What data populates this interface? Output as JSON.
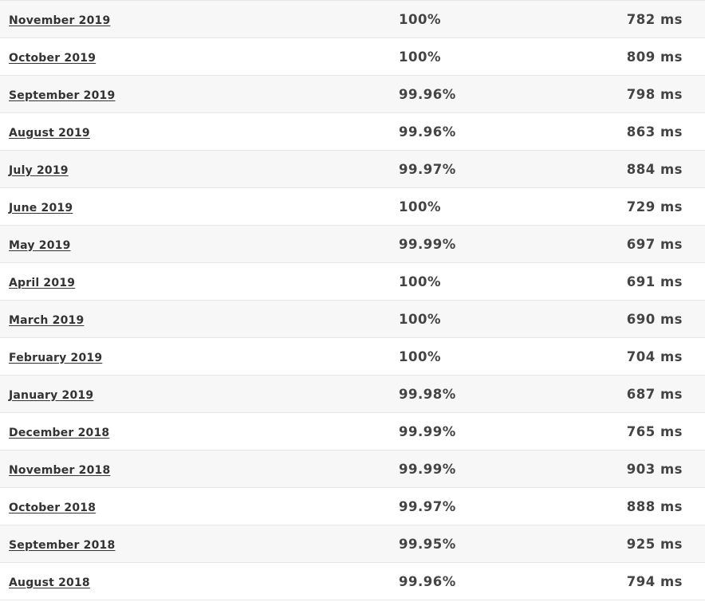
{
  "rows": [
    {
      "month": "November 2019",
      "uptime": "100%",
      "response": "782 ms"
    },
    {
      "month": "October 2019",
      "uptime": "100%",
      "response": "809 ms"
    },
    {
      "month": "September 2019",
      "uptime": "99.96%",
      "response": "798 ms"
    },
    {
      "month": "August 2019",
      "uptime": "99.96%",
      "response": "863 ms"
    },
    {
      "month": "July 2019",
      "uptime": "99.97%",
      "response": "884 ms"
    },
    {
      "month": "June 2019",
      "uptime": "100%",
      "response": "729 ms"
    },
    {
      "month": "May 2019",
      "uptime": "99.99%",
      "response": "697 ms"
    },
    {
      "month": "April 2019",
      "uptime": "100%",
      "response": "691 ms"
    },
    {
      "month": "March 2019",
      "uptime": "100%",
      "response": "690 ms"
    },
    {
      "month": "February 2019",
      "uptime": "100%",
      "response": "704 ms"
    },
    {
      "month": "January 2019",
      "uptime": "99.98%",
      "response": "687 ms"
    },
    {
      "month": "December 2018",
      "uptime": "99.99%",
      "response": "765 ms"
    },
    {
      "month": "November 2018",
      "uptime": "99.99%",
      "response": "903 ms"
    },
    {
      "month": "October 2018",
      "uptime": "99.97%",
      "response": "888 ms"
    },
    {
      "month": "September 2018",
      "uptime": "99.95%",
      "response": "925 ms"
    },
    {
      "month": "August 2018",
      "uptime": "99.96%",
      "response": "794 ms"
    }
  ]
}
